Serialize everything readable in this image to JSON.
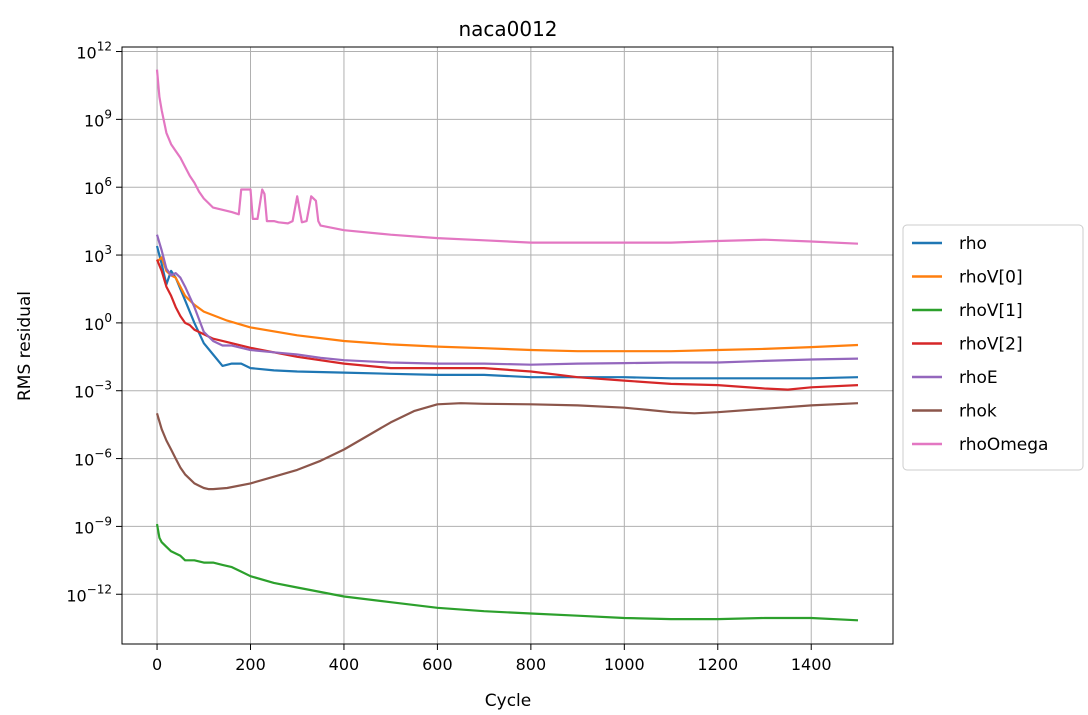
{
  "chart_data": {
    "type": "line",
    "title": "naca0012",
    "xlabel": "Cycle",
    "ylabel": "RMS residual",
    "yscale": "log",
    "xlim": [
      -75,
      1575
    ],
    "ylim_log10": [
      -14.2,
      12.2
    ],
    "x_ticks": [
      0,
      200,
      400,
      600,
      800,
      1000,
      1200,
      1400
    ],
    "y_ticks": [
      {
        "exp": 12,
        "base": "10",
        "label": "12"
      },
      {
        "exp": 9,
        "base": "10",
        "label": "9"
      },
      {
        "exp": 6,
        "base": "10",
        "label": "6"
      },
      {
        "exp": 3,
        "base": "10",
        "label": "3"
      },
      {
        "exp": 0,
        "base": "10",
        "label": "0"
      },
      {
        "exp": -3,
        "base": "10",
        "label": "−3"
      },
      {
        "exp": -6,
        "base": "10",
        "label": "−6"
      },
      {
        "exp": -9,
        "base": "10",
        "label": "−9"
      },
      {
        "exp": -12,
        "base": "10",
        "label": "−12"
      }
    ],
    "grid": true,
    "legend_position": "outside-right",
    "series": [
      {
        "name": "rho",
        "color": "#1f77b4",
        "x": [
          0,
          10,
          20,
          30,
          40,
          60,
          80,
          100,
          120,
          140,
          160,
          180,
          200,
          250,
          300,
          400,
          500,
          600,
          700,
          800,
          900,
          1000,
          1100,
          1200,
          1300,
          1400,
          1500
        ],
        "log10_y": [
          3.4,
          2.6,
          1.7,
          2.3,
          2.0,
          1.0,
          0.0,
          -0.9,
          -1.4,
          -1.9,
          -1.8,
          -1.8,
          -2.0,
          -2.1,
          -2.15,
          -2.2,
          -2.25,
          -2.3,
          -2.3,
          -2.4,
          -2.4,
          -2.4,
          -2.45,
          -2.45,
          -2.45,
          -2.45,
          -2.4
        ]
      },
      {
        "name": "rhoV[0]",
        "color": "#ff7f0e",
        "x": [
          0,
          10,
          20,
          30,
          40,
          60,
          80,
          100,
          150,
          200,
          300,
          400,
          500,
          600,
          700,
          800,
          900,
          1000,
          1100,
          1200,
          1300,
          1400,
          1500
        ],
        "log10_y": [
          2.7,
          2.9,
          2.3,
          2.1,
          2.0,
          1.2,
          0.8,
          0.5,
          0.1,
          -0.2,
          -0.55,
          -0.8,
          -0.95,
          -1.05,
          -1.12,
          -1.2,
          -1.25,
          -1.25,
          -1.25,
          -1.2,
          -1.15,
          -1.07,
          -0.98
        ]
      },
      {
        "name": "rhoV[1]",
        "color": "#2ca02c",
        "x": [
          0,
          5,
          10,
          20,
          30,
          40,
          50,
          60,
          80,
          100,
          120,
          140,
          160,
          180,
          200,
          250,
          300,
          400,
          500,
          600,
          700,
          800,
          900,
          1000,
          1100,
          1200,
          1300,
          1350,
          1400,
          1500
        ],
        "log10_y": [
          -8.9,
          -9.5,
          -9.7,
          -9.9,
          -10.1,
          -10.2,
          -10.3,
          -10.5,
          -10.5,
          -10.6,
          -10.6,
          -10.7,
          -10.8,
          -11.0,
          -11.2,
          -11.5,
          -11.7,
          -12.1,
          -12.35,
          -12.6,
          -12.75,
          -12.85,
          -12.95,
          -13.05,
          -13.1,
          -13.1,
          -13.05,
          -13.05,
          -13.05,
          -13.15
        ]
      },
      {
        "name": "rhoV[2]",
        "color": "#d62728",
        "x": [
          0,
          10,
          20,
          30,
          40,
          50,
          60,
          70,
          80,
          100,
          120,
          150,
          200,
          300,
          400,
          500,
          600,
          700,
          800,
          900,
          1000,
          1100,
          1200,
          1300,
          1350,
          1400,
          1500
        ],
        "log10_y": [
          2.8,
          2.3,
          1.6,
          1.2,
          0.7,
          0.3,
          0.0,
          -0.1,
          -0.3,
          -0.5,
          -0.7,
          -0.85,
          -1.1,
          -1.5,
          -1.8,
          -2.0,
          -2.0,
          -2.0,
          -2.15,
          -2.4,
          -2.55,
          -2.7,
          -2.75,
          -2.9,
          -2.95,
          -2.85,
          -2.75
        ]
      },
      {
        "name": "rhoE",
        "color": "#9467bd",
        "x": [
          0,
          10,
          20,
          30,
          40,
          50,
          60,
          80,
          100,
          120,
          140,
          160,
          180,
          200,
          250,
          300,
          350,
          400,
          500,
          600,
          700,
          800,
          900,
          1000,
          1100,
          1200,
          1300,
          1400,
          1500
        ],
        "log10_y": [
          3.9,
          3.2,
          2.4,
          2.1,
          2.2,
          2.0,
          1.6,
          0.7,
          -0.4,
          -0.8,
          -1.0,
          -1.0,
          -1.1,
          -1.2,
          -1.3,
          -1.4,
          -1.55,
          -1.65,
          -1.75,
          -1.8,
          -1.8,
          -1.85,
          -1.8,
          -1.78,
          -1.75,
          -1.75,
          -1.68,
          -1.62,
          -1.58
        ]
      },
      {
        "name": "rhok",
        "color": "#8c564b",
        "x": [
          0,
          10,
          20,
          30,
          40,
          50,
          60,
          70,
          80,
          90,
          100,
          110,
          120,
          150,
          200,
          250,
          300,
          350,
          400,
          450,
          500,
          550,
          600,
          650,
          700,
          800,
          900,
          1000,
          1050,
          1100,
          1150,
          1200,
          1300,
          1400,
          1500
        ],
        "log10_y": [
          -4.0,
          -4.7,
          -5.2,
          -5.6,
          -6.0,
          -6.4,
          -6.7,
          -6.9,
          -7.1,
          -7.2,
          -7.3,
          -7.35,
          -7.35,
          -7.3,
          -7.1,
          -6.8,
          -6.5,
          -6.1,
          -5.6,
          -5.0,
          -4.4,
          -3.9,
          -3.6,
          -3.55,
          -3.58,
          -3.6,
          -3.65,
          -3.75,
          -3.85,
          -3.95,
          -4.0,
          -3.95,
          -3.8,
          -3.65,
          -3.55
        ]
      },
      {
        "name": "rhoOmega",
        "color": "#e377c2",
        "x": [
          0,
          5,
          10,
          20,
          30,
          40,
          50,
          60,
          70,
          80,
          90,
          100,
          110,
          120,
          140,
          160,
          175,
          180,
          185,
          200,
          205,
          215,
          225,
          230,
          235,
          250,
          260,
          280,
          290,
          300,
          305,
          310,
          320,
          330,
          340,
          345,
          350,
          400,
          500,
          600,
          700,
          800,
          900,
          1000,
          1100,
          1200,
          1300,
          1400,
          1500
        ],
        "log10_y": [
          11.2,
          10.0,
          9.4,
          8.4,
          7.9,
          7.6,
          7.3,
          6.9,
          6.5,
          6.2,
          5.8,
          5.5,
          5.3,
          5.1,
          5.0,
          4.9,
          4.8,
          5.9,
          5.9,
          5.9,
          4.6,
          4.6,
          5.9,
          5.7,
          4.5,
          4.5,
          4.45,
          4.4,
          4.5,
          5.6,
          5.0,
          4.45,
          4.5,
          5.6,
          5.4,
          4.5,
          4.3,
          4.1,
          3.9,
          3.75,
          3.65,
          3.55,
          3.55,
          3.55,
          3.55,
          3.62,
          3.68,
          3.6,
          3.5
        ]
      }
    ]
  }
}
